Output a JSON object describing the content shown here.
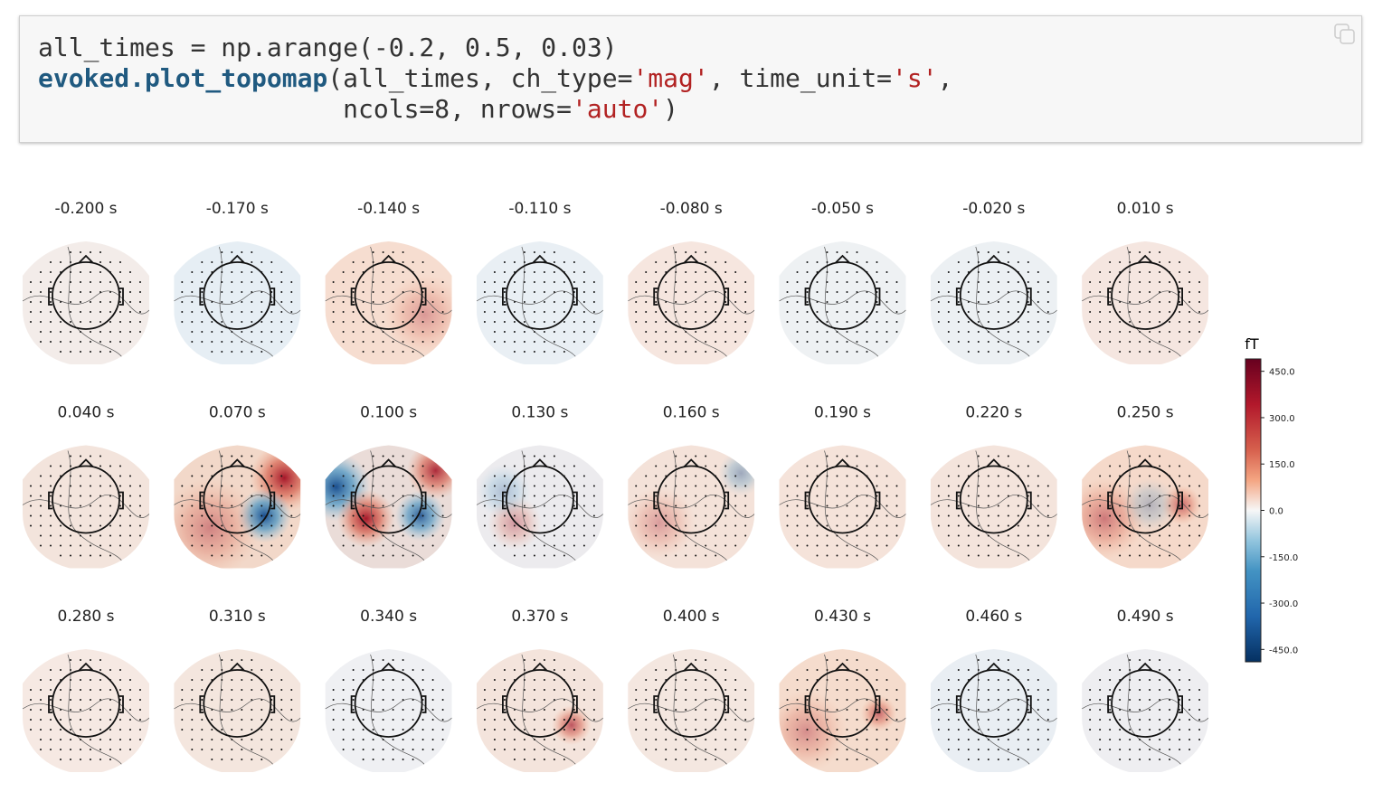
{
  "code": {
    "lines": [
      "all_times = np.arange(-0.2, 0.5, 0.03)",
      "evoked.plot_topomap(all_times, ch_type='mag', time_unit='s',",
      "                    ncols=8, nrows='auto')"
    ]
  },
  "figure": {
    "titles": [
      "-0.200 s",
      "-0.170 s",
      "-0.140 s",
      "-0.110 s",
      "-0.080 s",
      "-0.050 s",
      "-0.020 s",
      "0.010 s",
      "0.040 s",
      "0.070 s",
      "0.100 s",
      "0.130 s",
      "0.160 s",
      "0.190 s",
      "0.220 s",
      "0.250 s",
      "0.280 s",
      "0.310 s",
      "0.340 s",
      "0.370 s",
      "0.400 s",
      "0.430 s",
      "0.460 s",
      "0.490 s"
    ],
    "colorbar": {
      "unit": "fT",
      "lim": [
        -490,
        490
      ],
      "ticks": [
        {
          "value": 450,
          "label": "450.0"
        },
        {
          "value": 300,
          "label": "300.0"
        },
        {
          "value": 150,
          "label": "150.0"
        },
        {
          "value": 0,
          "label": "0.0"
        },
        {
          "value": -150,
          "label": "-150.0"
        },
        {
          "value": -300,
          "label": "-300.0"
        },
        {
          "value": -450,
          "label": "-450.0"
        }
      ]
    }
  }
}
